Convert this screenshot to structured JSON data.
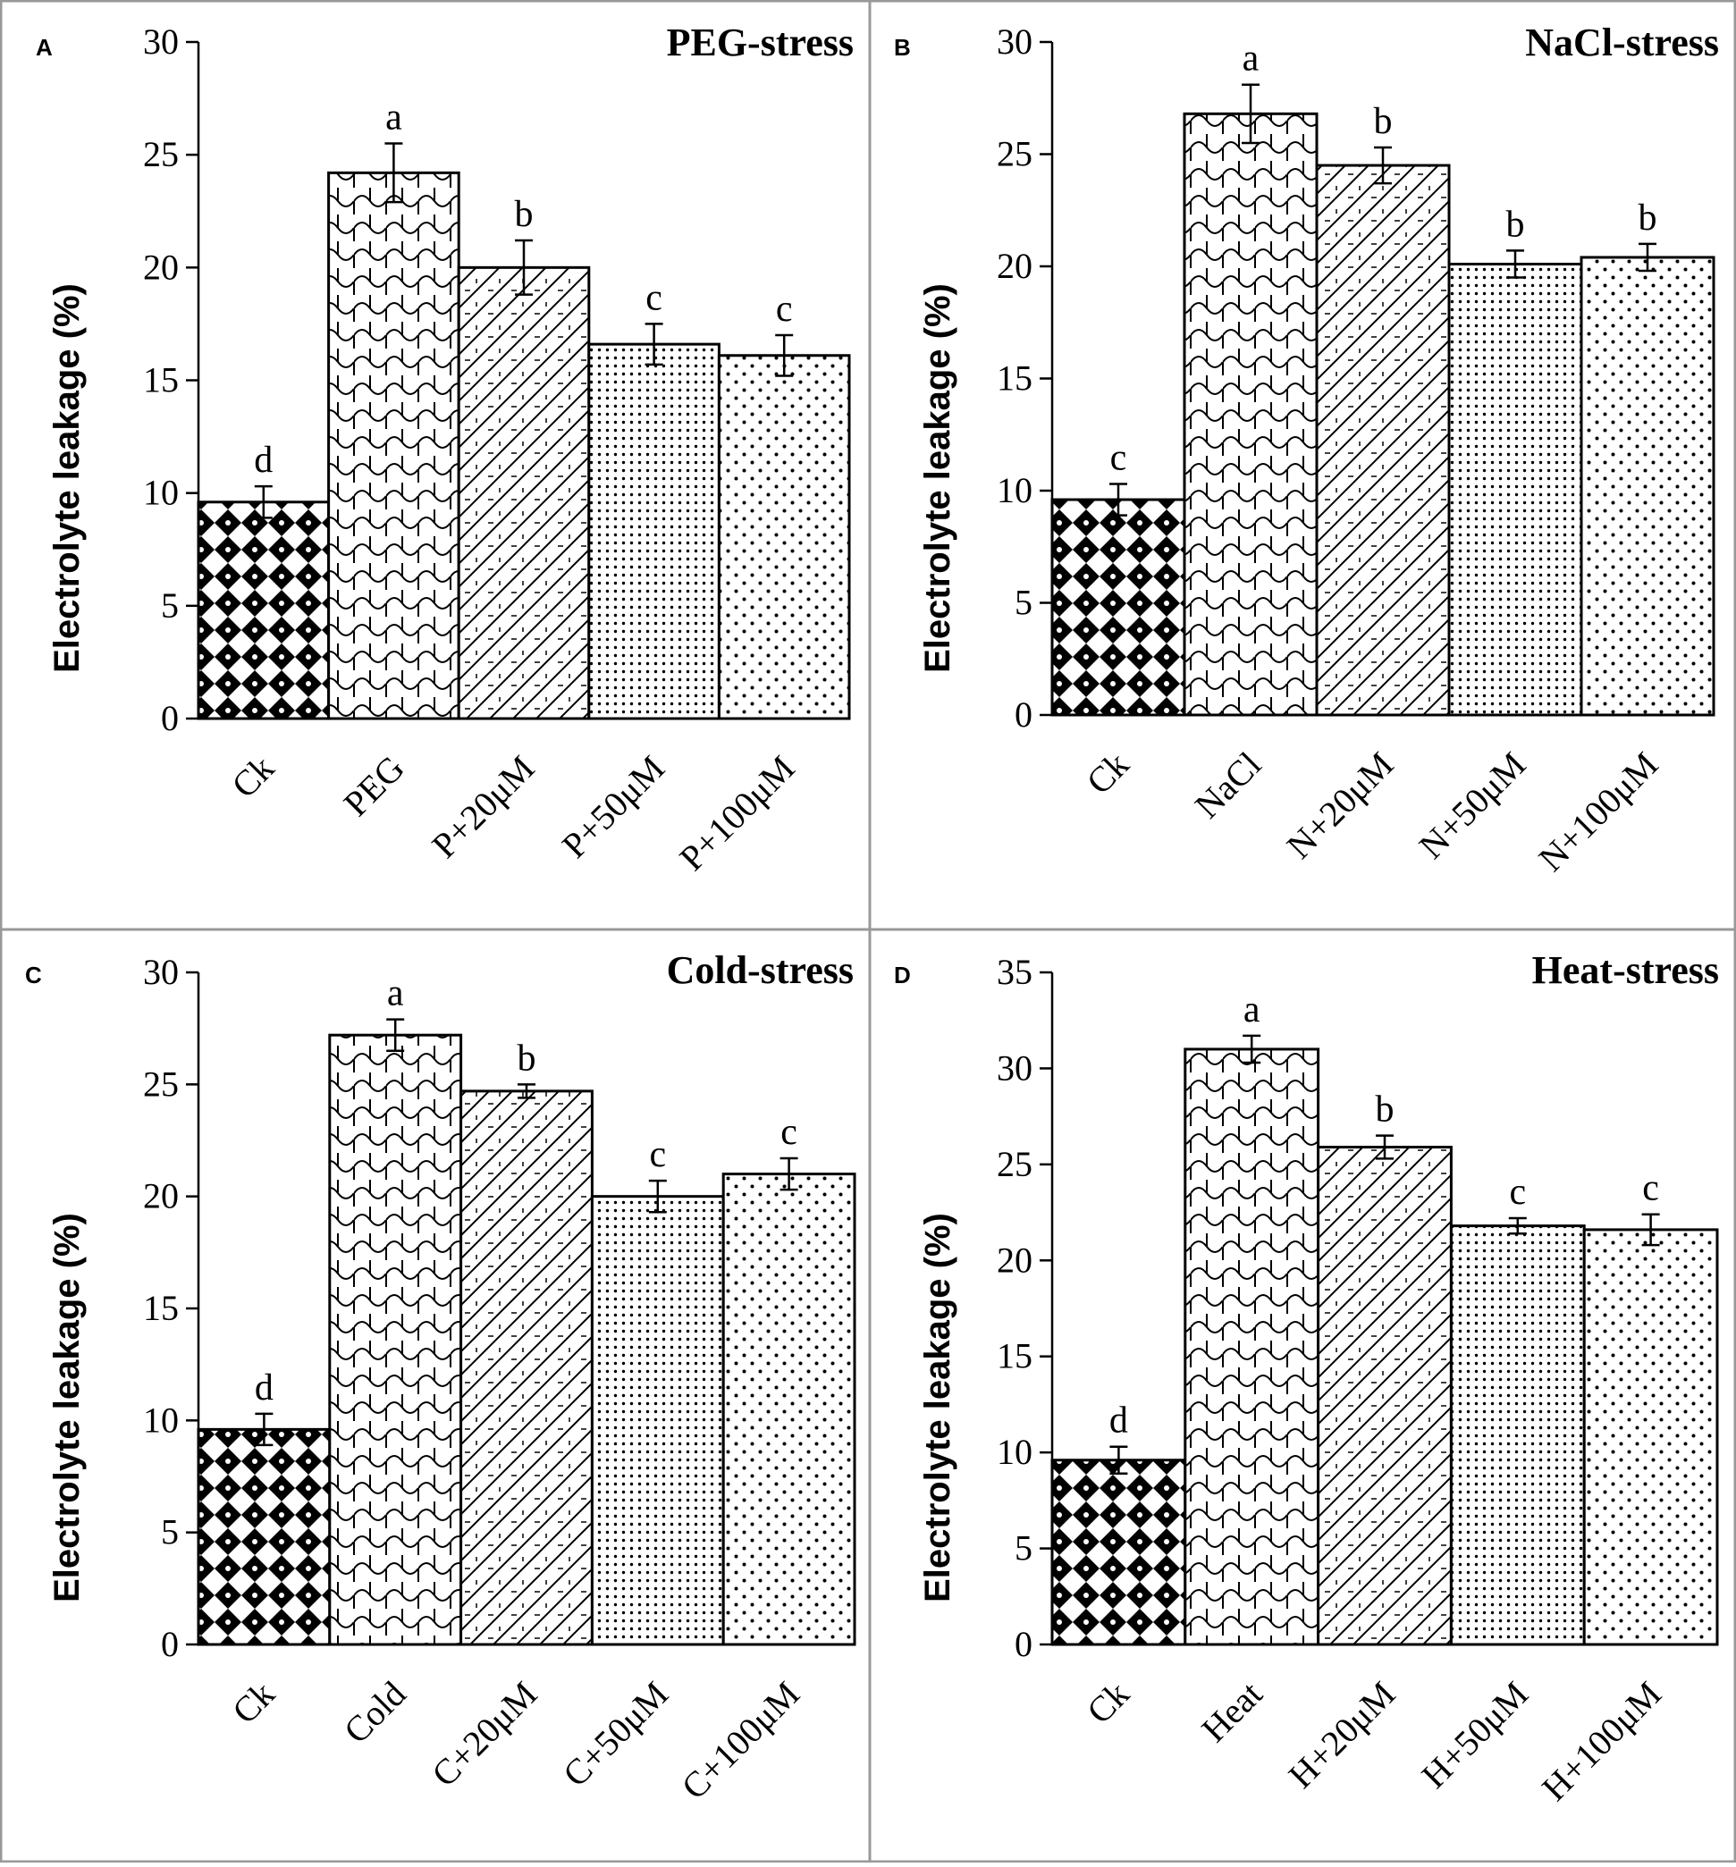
{
  "figure": {
    "type": "multi-panel bar chart"
  },
  "chart_data": [
    {
      "type": "bar",
      "panel": "A",
      "title": "PEG-stress",
      "ylabel": "Electrolyte leakage (%)",
      "xlabel": "",
      "ylim": [
        0,
        30
      ],
      "yticks": [
        0,
        5,
        10,
        15,
        20,
        25,
        30
      ],
      "categories": [
        "Ck",
        "PEG",
        "P+20μM",
        "P+50μM",
        "P+100μM"
      ],
      "values": [
        9.6,
        24.2,
        20.0,
        16.6,
        16.1
      ],
      "errors": [
        0.7,
        1.3,
        1.2,
        0.9,
        0.9
      ],
      "significance": [
        "d",
        "a",
        "b",
        "c",
        "c"
      ],
      "patterns": [
        "diamonds",
        "scales",
        "hatch",
        "dots-dense",
        "dots-sparse"
      ],
      "grid": false
    },
    {
      "type": "bar",
      "panel": "B",
      "title": "NaCl-stress",
      "ylabel": "Electrolyte leakage (%)",
      "xlabel": "",
      "ylim": [
        0,
        30
      ],
      "yticks": [
        0,
        5,
        10,
        15,
        20,
        25,
        30
      ],
      "categories": [
        "Ck",
        "NaCl",
        "N+20μM",
        "N+50μM",
        "N+100μM"
      ],
      "values": [
        9.6,
        26.8,
        24.5,
        20.1,
        20.4
      ],
      "errors": [
        0.7,
        1.3,
        0.8,
        0.6,
        0.6
      ],
      "significance": [
        "c",
        "a",
        "b",
        "b",
        "b"
      ],
      "patterns": [
        "diamonds",
        "scales",
        "hatch",
        "dots-dense",
        "dots-sparse"
      ],
      "grid": false
    },
    {
      "type": "bar",
      "panel": "C",
      "title": "Cold-stress",
      "ylabel": "Electrolyte leakage (%)",
      "xlabel": "",
      "ylim": [
        0,
        30
      ],
      "yticks": [
        0,
        5,
        10,
        15,
        20,
        25,
        30
      ],
      "categories": [
        "Ck",
        "Cold",
        "C+20μM",
        "C+50μM",
        "C+100μM"
      ],
      "values": [
        9.6,
        27.2,
        24.7,
        20.0,
        21.0
      ],
      "errors": [
        0.7,
        0.7,
        0.3,
        0.7,
        0.7
      ],
      "significance": [
        "d",
        "a",
        "b",
        "c",
        "c"
      ],
      "patterns": [
        "diamonds",
        "scales",
        "hatch",
        "dots-dense",
        "dots-sparse"
      ],
      "grid": false
    },
    {
      "type": "bar",
      "panel": "D",
      "title": "Heat-stress",
      "ylabel": "Electrolyte leakage (%)",
      "xlabel": "",
      "ylim": [
        0,
        35
      ],
      "yticks": [
        0,
        5,
        10,
        15,
        20,
        25,
        30,
        35
      ],
      "categories": [
        "Ck",
        "Heat",
        "H+20μM",
        "H+50μM",
        "H+100μM"
      ],
      "values": [
        9.6,
        31.0,
        25.9,
        21.8,
        21.6
      ],
      "errors": [
        0.7,
        0.7,
        0.6,
        0.4,
        0.8
      ],
      "significance": [
        "d",
        "a",
        "b",
        "c",
        "c"
      ],
      "patterns": [
        "diamonds",
        "scales",
        "hatch",
        "dots-dense",
        "dots-sparse"
      ],
      "grid": false
    }
  ]
}
